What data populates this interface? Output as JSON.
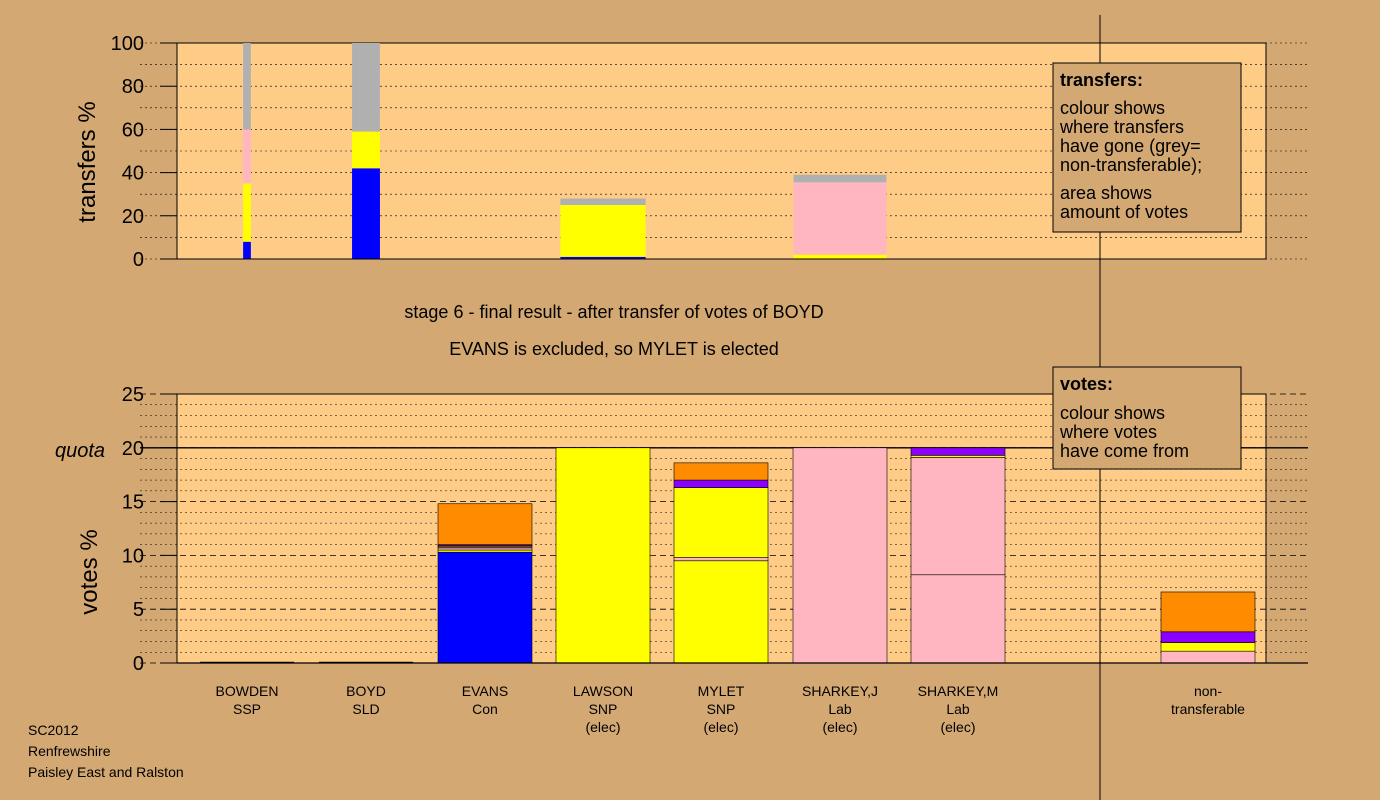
{
  "footer": {
    "line1": "SC2012",
    "line2": "Renfrewshire",
    "line3": "Paisley East and Ralston"
  },
  "legend_transfers": {
    "title": "transfers:",
    "lines": [
      "colour shows",
      "where transfers",
      "have gone (grey=",
      "non-transferable);",
      "area shows",
      "amount of votes"
    ]
  },
  "legend_votes": {
    "title": "votes:",
    "lines": [
      "colour shows",
      "where votes",
      "have come from"
    ]
  },
  "stage_title": "stage 6 - final result - after transfer of votes of BOYD",
  "stage_subtitle": "EVANS is excluded, so MYLET is elected",
  "chart_data": [
    {
      "type": "bar",
      "name": "transfers",
      "ylabel": "transfers %",
      "ylim": [
        0,
        100
      ],
      "yticks": [
        0,
        20,
        40,
        60,
        80,
        100
      ],
      "grid": true,
      "bars": [
        {
          "candidate": "BOWDEN",
          "width_share": 0.05,
          "segments": [
            {
              "color": "#0000ff",
              "value": 8
            },
            {
              "color": "#ffff00",
              "value": 27
            },
            {
              "color": "#ffb6c1",
              "value": 25
            },
            {
              "color": "#b0b0b0",
              "value": 40
            }
          ]
        },
        {
          "candidate": "BOYD",
          "width_share": 0.18,
          "segments": [
            {
              "color": "#0000ff",
              "value": 42
            },
            {
              "color": "#ffff00",
              "value": 17
            },
            {
              "color": "#b0b0b0",
              "value": 41
            }
          ]
        },
        {
          "candidate": "LAWSON",
          "width_share": 0.55,
          "segments": [
            {
              "color": "#0000ff",
              "value": 1
            },
            {
              "color": "#ffff00",
              "value": 24
            },
            {
              "color": "#b0b0b0",
              "value": 3
            }
          ]
        },
        {
          "candidate": "SHARKEY,J",
          "width_share": 0.6,
          "segments": [
            {
              "color": "#ffff00",
              "value": 2
            },
            {
              "color": "#ffb6c1",
              "value": 33.5
            },
            {
              "color": "#b0b0b0",
              "value": 3.5
            }
          ]
        }
      ]
    },
    {
      "type": "bar",
      "name": "votes",
      "ylabel": "votes %",
      "ylim": [
        0,
        25
      ],
      "yticks": [
        0,
        5,
        10,
        15,
        20,
        25
      ],
      "quota": 20,
      "quota_label": "quota",
      "grid": true,
      "categories": [
        {
          "name": "BOWDEN",
          "party": "SSP",
          "status": ""
        },
        {
          "name": "BOYD",
          "party": "SLD",
          "status": ""
        },
        {
          "name": "EVANS",
          "party": "Con",
          "status": ""
        },
        {
          "name": "LAWSON",
          "party": "SNP",
          "status": "(elec)"
        },
        {
          "name": "MYLET",
          "party": "SNP",
          "status": "(elec)"
        },
        {
          "name": "SHARKEY,J",
          "party": "Lab",
          "status": "(elec)"
        },
        {
          "name": "SHARKEY,M",
          "party": "Lab",
          "status": "(elec)"
        },
        {
          "name": "non-",
          "party": "transferable",
          "status": ""
        }
      ],
      "bars": [
        {
          "index": 0,
          "segments": []
        },
        {
          "index": 1,
          "segments": []
        },
        {
          "index": 2,
          "segments": [
            {
              "color": "#0000ff",
              "value": 10.3
            },
            {
              "color": "#ffff00",
              "value": 0.2
            },
            {
              "color": "#ffb6c1",
              "value": 0.2
            },
            {
              "color": "#b0b0b0",
              "value": 0.1
            },
            {
              "color": "#ff8c00",
              "value": 0.1
            },
            {
              "color": "#8b00ff",
              "value": 0.1
            },
            {
              "color": "#ff8c00",
              "value": 3.8
            }
          ]
        },
        {
          "index": 3,
          "segments": [
            {
              "color": "#ffff00",
              "value": 20
            }
          ]
        },
        {
          "index": 4,
          "segments": [
            {
              "color": "#ffff00",
              "value": 9.5
            },
            {
              "color": "#ffb6c1",
              "value": 0.3
            },
            {
              "color": "#ffff00",
              "value": 6.5
            },
            {
              "color": "#8b00ff",
              "value": 0.7
            },
            {
              "color": "#ff8c00",
              "value": 1.6
            }
          ]
        },
        {
          "index": 5,
          "segments": [
            {
              "color": "#ffb6c1",
              "value": 20
            }
          ]
        },
        {
          "index": 6,
          "segments": [
            {
              "color": "#ffb6c1",
              "value": 8.2
            },
            {
              "color": "#ffb6c1",
              "value": 10.9
            },
            {
              "color": "#ffff00",
              "value": 0.2
            },
            {
              "color": "#8b00ff",
              "value": 0.7
            }
          ]
        },
        {
          "index": 7,
          "segments": [
            {
              "color": "#ffb6c1",
              "value": 1.1
            },
            {
              "color": "#ffff00",
              "value": 0.8
            },
            {
              "color": "#8b00ff",
              "value": 1.0
            },
            {
              "color": "#ff8c00",
              "value": 3.7
            }
          ]
        }
      ]
    }
  ]
}
